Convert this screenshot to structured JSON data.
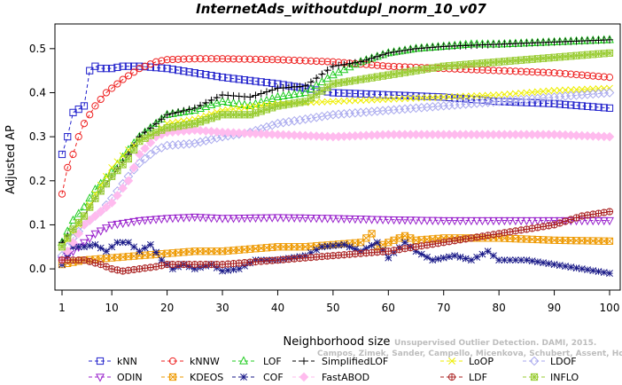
{
  "chart_data": {
    "type": "line",
    "title": "InternetAds_withoutdupl_norm_10_v07",
    "xlabel": "Neighborhood size",
    "ylabel": "Adjusted AP",
    "xlim": [
      1,
      100
    ],
    "ylim": [
      -0.03,
      0.55
    ],
    "xticks": [
      1,
      10,
      20,
      30,
      40,
      50,
      60,
      70,
      80,
      90,
      100
    ],
    "yticks": [
      0.0,
      0.1,
      0.2,
      0.3,
      0.4,
      0.5
    ],
    "ytick_labels": [
      "0.0",
      "0.1",
      "0.2",
      "0.3",
      "0.4",
      "0.5"
    ],
    "grid": false,
    "legend_position": "bottom",
    "credit": "Campos, Zimek, Sander, Campello, Micenkova, Schubert, Assent, Houle",
    "credit_line1": "Unsupervised Outlier Detection. DAMI, 2015.",
    "series": [
      {
        "name": "kNN",
        "color": "#2222cc",
        "marker": "square",
        "dashed": true,
        "points": [
          [
            1,
            0.26
          ],
          [
            2,
            0.3
          ],
          [
            3,
            0.355
          ],
          [
            5,
            0.37
          ],
          [
            6,
            0.45
          ],
          [
            7,
            0.46
          ],
          [
            8,
            0.455
          ],
          [
            10,
            0.455
          ],
          [
            12,
            0.46
          ],
          [
            15,
            0.46
          ],
          [
            20,
            0.455
          ],
          [
            25,
            0.445
          ],
          [
            30,
            0.435
          ],
          [
            40,
            0.42
          ],
          [
            50,
            0.4
          ],
          [
            60,
            0.395
          ],
          [
            70,
            0.39
          ],
          [
            80,
            0.38
          ],
          [
            90,
            0.375
          ],
          [
            100,
            0.365
          ]
        ]
      },
      {
        "name": "kNNW",
        "color": "#ee2222",
        "marker": "circle",
        "dashed": true,
        "points": [
          [
            1,
            0.17
          ],
          [
            2,
            0.23
          ],
          [
            3,
            0.26
          ],
          [
            4,
            0.3
          ],
          [
            5,
            0.33
          ],
          [
            7,
            0.37
          ],
          [
            9,
            0.4
          ],
          [
            12,
            0.43
          ],
          [
            15,
            0.455
          ],
          [
            18,
            0.47
          ],
          [
            20,
            0.475
          ],
          [
            25,
            0.477
          ],
          [
            30,
            0.477
          ],
          [
            40,
            0.475
          ],
          [
            50,
            0.47
          ],
          [
            60,
            0.46
          ],
          [
            70,
            0.455
          ],
          [
            80,
            0.45
          ],
          [
            90,
            0.445
          ],
          [
            100,
            0.435
          ]
        ]
      },
      {
        "name": "LOF",
        "color": "#22cc22",
        "marker": "triangle",
        "dashed": true,
        "points": [
          [
            1,
            0.06
          ],
          [
            3,
            0.11
          ],
          [
            5,
            0.14
          ],
          [
            7,
            0.18
          ],
          [
            10,
            0.22
          ],
          [
            13,
            0.27
          ],
          [
            15,
            0.3
          ],
          [
            18,
            0.33
          ],
          [
            20,
            0.35
          ],
          [
            25,
            0.36
          ],
          [
            30,
            0.38
          ],
          [
            35,
            0.37
          ],
          [
            40,
            0.39
          ],
          [
            45,
            0.4
          ],
          [
            50,
            0.44
          ],
          [
            55,
            0.47
          ],
          [
            60,
            0.49
          ],
          [
            65,
            0.5
          ],
          [
            70,
            0.505
          ],
          [
            75,
            0.51
          ],
          [
            80,
            0.51
          ],
          [
            90,
            0.515
          ],
          [
            100,
            0.52
          ]
        ]
      },
      {
        "name": "SimplifiedLOF",
        "color": "#000000",
        "marker": "plus",
        "dashed": true,
        "points": [
          [
            1,
            0.06
          ],
          [
            3,
            0.09
          ],
          [
            5,
            0.12
          ],
          [
            7,
            0.16
          ],
          [
            10,
            0.21
          ],
          [
            13,
            0.26
          ],
          [
            15,
            0.3
          ],
          [
            18,
            0.33
          ],
          [
            20,
            0.35
          ],
          [
            25,
            0.365
          ],
          [
            30,
            0.395
          ],
          [
            35,
            0.39
          ],
          [
            40,
            0.41
          ],
          [
            45,
            0.415
          ],
          [
            50,
            0.46
          ],
          [
            55,
            0.47
          ],
          [
            60,
            0.49
          ],
          [
            65,
            0.5
          ],
          [
            70,
            0.505
          ],
          [
            80,
            0.51
          ],
          [
            90,
            0.515
          ],
          [
            100,
            0.52
          ]
        ]
      },
      {
        "name": "LoOP",
        "color": "#eeee00",
        "marker": "x",
        "dashed": true,
        "points": [
          [
            1,
            0.05
          ],
          [
            3,
            0.08
          ],
          [
            5,
            0.12
          ],
          [
            7,
            0.17
          ],
          [
            10,
            0.23
          ],
          [
            13,
            0.27
          ],
          [
            15,
            0.29
          ],
          [
            18,
            0.31
          ],
          [
            20,
            0.33
          ],
          [
            25,
            0.34
          ],
          [
            30,
            0.36
          ],
          [
            40,
            0.375
          ],
          [
            50,
            0.38
          ],
          [
            60,
            0.385
          ],
          [
            70,
            0.39
          ],
          [
            80,
            0.395
          ],
          [
            90,
            0.405
          ],
          [
            100,
            0.41
          ]
        ]
      },
      {
        "name": "LDOF",
        "color": "#aaaaee",
        "marker": "diamond",
        "dashed": true,
        "points": [
          [
            1,
            0.03
          ],
          [
            3,
            0.07
          ],
          [
            5,
            0.1
          ],
          [
            8,
            0.13
          ],
          [
            10,
            0.16
          ],
          [
            13,
            0.21
          ],
          [
            15,
            0.24
          ],
          [
            18,
            0.27
          ],
          [
            20,
            0.28
          ],
          [
            25,
            0.285
          ],
          [
            30,
            0.3
          ],
          [
            35,
            0.31
          ],
          [
            40,
            0.33
          ],
          [
            45,
            0.34
          ],
          [
            50,
            0.35
          ],
          [
            60,
            0.36
          ],
          [
            70,
            0.37
          ],
          [
            80,
            0.38
          ],
          [
            90,
            0.39
          ],
          [
            100,
            0.4
          ]
        ]
      },
      {
        "name": "ODIN",
        "color": "#9922cc",
        "marker": "triangle-down",
        "dashed": true,
        "points": [
          [
            1,
            0.02
          ],
          [
            3,
            0.04
          ],
          [
            5,
            0.06
          ],
          [
            7,
            0.08
          ],
          [
            10,
            0.1
          ],
          [
            15,
            0.11
          ],
          [
            20,
            0.115
          ],
          [
            25,
            0.118
          ],
          [
            30,
            0.115
          ],
          [
            40,
            0.117
          ],
          [
            50,
            0.115
          ],
          [
            60,
            0.112
          ],
          [
            70,
            0.11
          ],
          [
            80,
            0.11
          ],
          [
            90,
            0.11
          ],
          [
            100,
            0.11
          ]
        ]
      },
      {
        "name": "KDEOS",
        "color": "#ee9900",
        "marker": "boxed-x",
        "dashed": true,
        "points": [
          [
            1,
            0.01
          ],
          [
            5,
            0.02
          ],
          [
            10,
            0.025
          ],
          [
            15,
            0.03
          ],
          [
            20,
            0.035
          ],
          [
            25,
            0.04
          ],
          [
            30,
            0.04
          ],
          [
            35,
            0.045
          ],
          [
            40,
            0.05
          ],
          [
            45,
            0.05
          ],
          [
            50,
            0.055
          ],
          [
            55,
            0.06
          ],
          [
            57,
            0.08
          ],
          [
            58,
            0.05
          ],
          [
            60,
            0.06
          ],
          [
            63,
            0.075
          ],
          [
            65,
            0.065
          ],
          [
            70,
            0.07
          ],
          [
            80,
            0.07
          ],
          [
            90,
            0.065
          ],
          [
            100,
            0.063
          ]
        ]
      },
      {
        "name": "COF",
        "color": "#1a1a88",
        "marker": "star",
        "dashed": true,
        "points": [
          [
            1,
            0.01
          ],
          [
            3,
            0.05
          ],
          [
            5,
            0.05
          ],
          [
            7,
            0.055
          ],
          [
            9,
            0.04
          ],
          [
            11,
            0.06
          ],
          [
            13,
            0.06
          ],
          [
            15,
            0.04
          ],
          [
            17,
            0.055
          ],
          [
            19,
            0.02
          ],
          [
            21,
            0.0
          ],
          [
            23,
            0.01
          ],
          [
            25,
            0.0
          ],
          [
            28,
            0.01
          ],
          [
            30,
            -0.005
          ],
          [
            33,
            0.0
          ],
          [
            36,
            0.02
          ],
          [
            40,
            0.02
          ],
          [
            45,
            0.03
          ],
          [
            48,
            0.05
          ],
          [
            52,
            0.055
          ],
          [
            55,
            0.04
          ],
          [
            58,
            0.06
          ],
          [
            60,
            0.025
          ],
          [
            63,
            0.06
          ],
          [
            65,
            0.04
          ],
          [
            68,
            0.02
          ],
          [
            72,
            0.03
          ],
          [
            75,
            0.02
          ],
          [
            78,
            0.04
          ],
          [
            80,
            0.02
          ],
          [
            85,
            0.02
          ],
          [
            90,
            0.01
          ],
          [
            95,
            0.0
          ],
          [
            100,
            -0.01
          ]
        ]
      },
      {
        "name": "FastABOD",
        "color": "#ffbbee",
        "marker": "diamond-filled",
        "dashed": true,
        "points": [
          [
            1,
            0.02
          ],
          [
            3,
            0.06
          ],
          [
            5,
            0.1
          ],
          [
            8,
            0.13
          ],
          [
            10,
            0.15
          ],
          [
            13,
            0.2
          ],
          [
            15,
            0.26
          ],
          [
            18,
            0.3
          ],
          [
            20,
            0.31
          ],
          [
            25,
            0.315
          ],
          [
            30,
            0.31
          ],
          [
            40,
            0.305
          ],
          [
            50,
            0.3
          ],
          [
            60,
            0.305
          ],
          [
            70,
            0.305
          ],
          [
            80,
            0.305
          ],
          [
            90,
            0.305
          ],
          [
            100,
            0.3
          ]
        ]
      },
      {
        "name": "LDF",
        "color": "#aa2222",
        "marker": "circle-plus",
        "dashed": true,
        "points": [
          [
            1,
            0.02
          ],
          [
            5,
            0.02
          ],
          [
            8,
            0.01
          ],
          [
            10,
            0.0
          ],
          [
            12,
            -0.005
          ],
          [
            15,
            0.0
          ],
          [
            18,
            0.005
          ],
          [
            20,
            0.01
          ],
          [
            25,
            0.01
          ],
          [
            30,
            0.01
          ],
          [
            35,
            0.015
          ],
          [
            40,
            0.02
          ],
          [
            45,
            0.025
          ],
          [
            50,
            0.03
          ],
          [
            55,
            0.035
          ],
          [
            60,
            0.04
          ],
          [
            65,
            0.05
          ],
          [
            70,
            0.06
          ],
          [
            75,
            0.07
          ],
          [
            80,
            0.08
          ],
          [
            85,
            0.09
          ],
          [
            90,
            0.1
          ],
          [
            95,
            0.12
          ],
          [
            100,
            0.13
          ]
        ]
      },
      {
        "name": "INFLO",
        "color": "#99cc33",
        "marker": "boxed-star",
        "dashed": true,
        "points": [
          [
            1,
            0.05
          ],
          [
            3,
            0.09
          ],
          [
            5,
            0.12
          ],
          [
            7,
            0.16
          ],
          [
            10,
            0.21
          ],
          [
            13,
            0.25
          ],
          [
            15,
            0.29
          ],
          [
            18,
            0.31
          ],
          [
            20,
            0.32
          ],
          [
            25,
            0.33
          ],
          [
            30,
            0.35
          ],
          [
            35,
            0.35
          ],
          [
            40,
            0.37
          ],
          [
            45,
            0.38
          ],
          [
            50,
            0.42
          ],
          [
            55,
            0.43
          ],
          [
            60,
            0.44
          ],
          [
            65,
            0.45
          ],
          [
            70,
            0.46
          ],
          [
            75,
            0.465
          ],
          [
            80,
            0.47
          ],
          [
            90,
            0.48
          ],
          [
            100,
            0.49
          ]
        ]
      }
    ]
  }
}
